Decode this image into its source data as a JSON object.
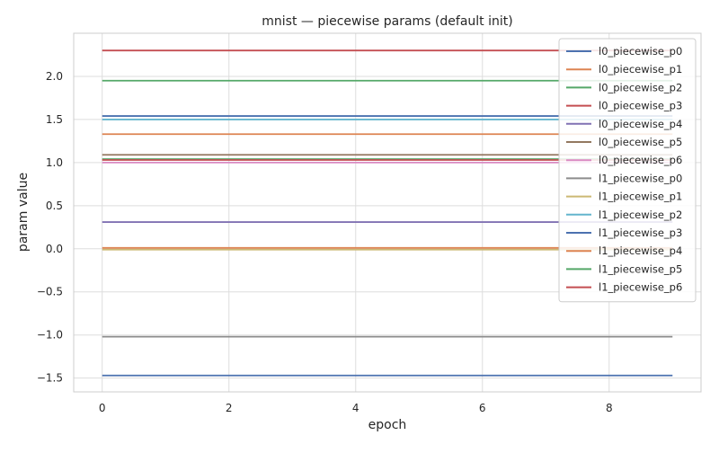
{
  "chart_data": {
    "type": "line",
    "title": "mnist — piecewise params (default init)",
    "xlabel": "epoch",
    "ylabel": "param value",
    "xlim": [
      -0.45,
      9.45
    ],
    "ylim": [
      -1.66,
      2.5
    ],
    "xticks": [
      0,
      2,
      4,
      6,
      8
    ],
    "yticks": [
      -1.5,
      -1.0,
      -0.5,
      0.0,
      0.5,
      1.0,
      1.5,
      2.0
    ],
    "ytick_labels": [
      "−1.5",
      "−1.0",
      "−0.5",
      "0.0",
      "0.5",
      "1.0",
      "1.5",
      "2.0"
    ],
    "grid": true,
    "legend_position": "top-right",
    "x": [
      0,
      1,
      2,
      3,
      4,
      5,
      6,
      7,
      8,
      9
    ],
    "series": [
      {
        "name": "l0_piecewise_p0",
        "color": "#4c72b0",
        "value": 1.54
      },
      {
        "name": "l0_piecewise_p1",
        "color": "#dd8452",
        "value": 1.33
      },
      {
        "name": "l0_piecewise_p2",
        "color": "#55a868",
        "value": 1.95
      },
      {
        "name": "l0_piecewise_p3",
        "color": "#c44e52",
        "value": 2.3
      },
      {
        "name": "l0_piecewise_p4",
        "color": "#8172b3",
        "value": 0.31
      },
      {
        "name": "l0_piecewise_p5",
        "color": "#937860",
        "value": 1.09
      },
      {
        "name": "l0_piecewise_p6",
        "color": "#da8bc3",
        "value": 1.0
      },
      {
        "name": "l1_piecewise_p0",
        "color": "#8c8c8c",
        "value": -1.02
      },
      {
        "name": "l1_piecewise_p1",
        "color": "#ccb974",
        "value": -0.01
      },
      {
        "name": "l1_piecewise_p2",
        "color": "#64b5cd",
        "value": 1.5
      },
      {
        "name": "l1_piecewise_p3",
        "color": "#4c72b0",
        "value": -1.47
      },
      {
        "name": "l1_piecewise_p4",
        "color": "#dd8452",
        "value": 0.01
      },
      {
        "name": "l1_piecewise_p5",
        "color": "#55a868",
        "value": 1.04
      },
      {
        "name": "l1_piecewise_p6",
        "color": "#c44e52",
        "value": 1.03
      }
    ]
  }
}
